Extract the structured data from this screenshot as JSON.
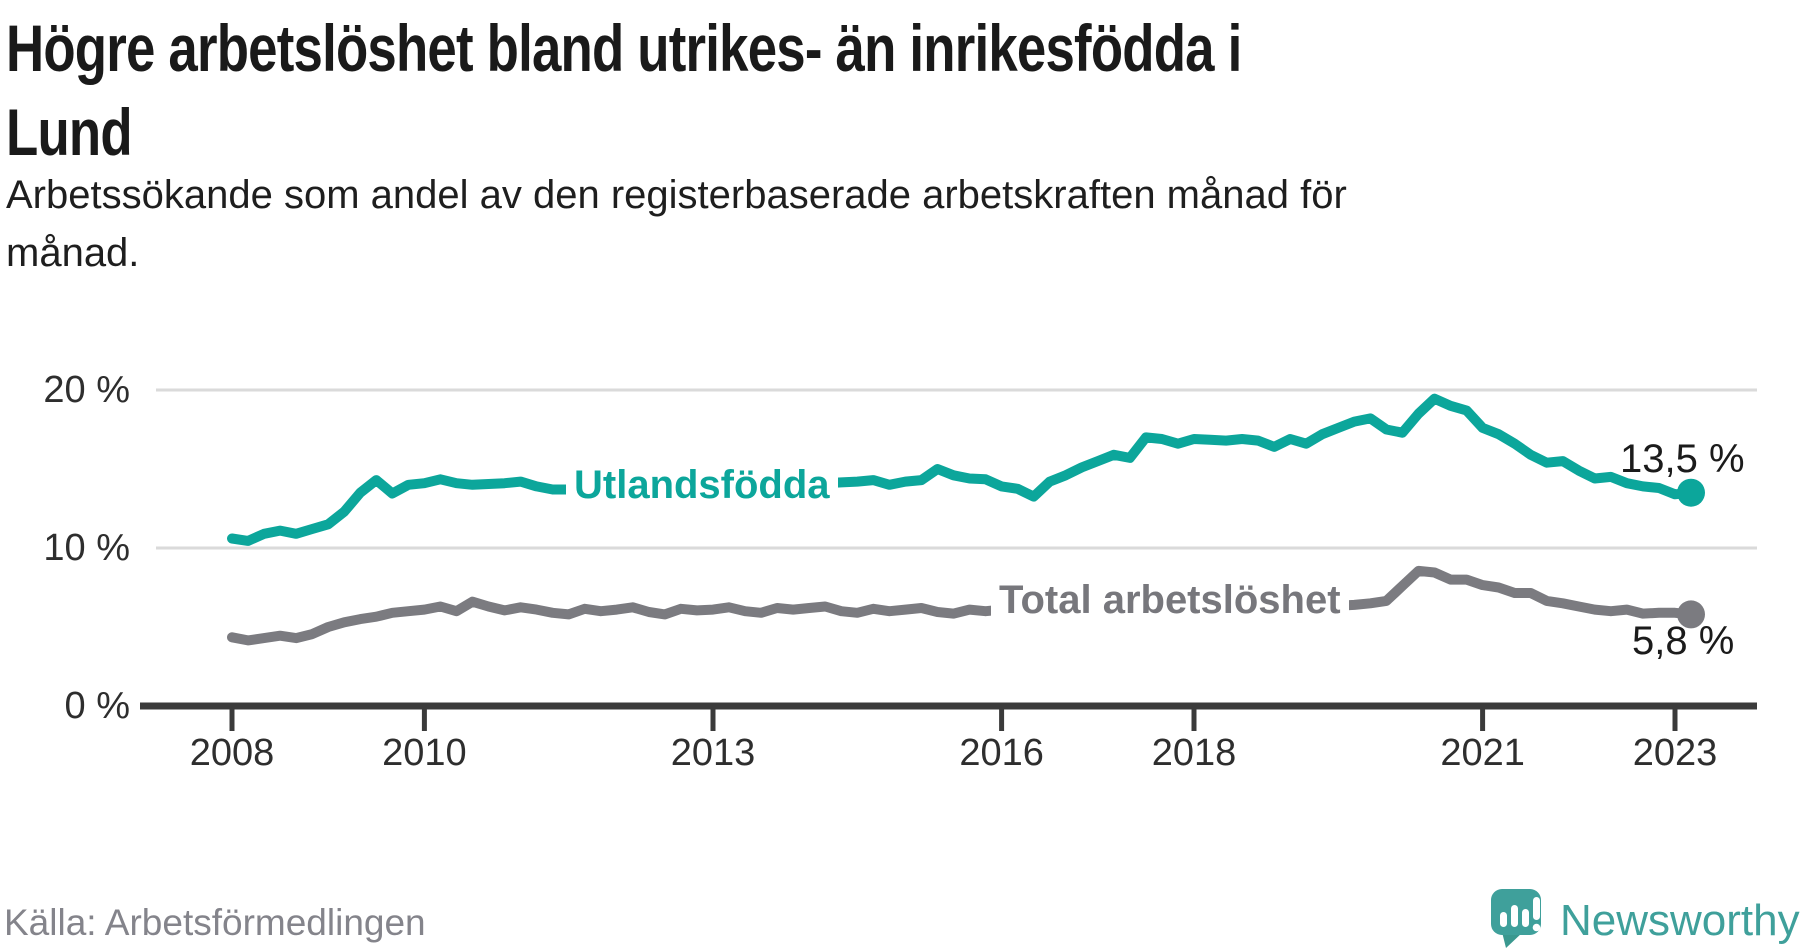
{
  "chart_data": {
    "type": "line",
    "title": "Högre arbetslöshet bland utrikes- än inrikesfödda i Lund",
    "title_lines": [
      "Högre arbetslöshet bland utrikes- än inrikesfödda i",
      "Lund"
    ],
    "subtitle": "Arbetssökande som andel av den registerbaserade arbetskraften månad för månad.",
    "subtitle_lines": [
      "Arbetssökande som andel av den registerbaserade arbetskraften månad för",
      "månad."
    ],
    "x_range": [
      2008,
      2023.17
    ],
    "ylim": [
      0,
      21
    ],
    "grid": "horizontal",
    "legend_position": "inline-on-line",
    "x_ticks": [
      {
        "year": 2008,
        "label": "2008"
      },
      {
        "year": 2010,
        "label": "2010"
      },
      {
        "year": 2013,
        "label": "2013"
      },
      {
        "year": 2016,
        "label": "2016"
      },
      {
        "year": 2018,
        "label": "2018"
      },
      {
        "year": 2021,
        "label": "2021"
      },
      {
        "year": 2023,
        "label": "2023"
      }
    ],
    "y_ticks": [
      {
        "value": 0,
        "label": "0 %"
      },
      {
        "value": 10,
        "label": "10 %"
      },
      {
        "value": 20,
        "label": "20 %"
      }
    ],
    "series": [
      {
        "name": "Utlandsfödda",
        "color": "#0CA69B",
        "value_label": "13,5 %",
        "last_value": 13.5,
        "x_start": 2008.0,
        "x_step_years": 0.166667,
        "end_dot": true,
        "values": [
          10.6,
          10.45,
          10.9,
          11.1,
          10.9,
          11.2,
          11.5,
          12.3,
          13.5,
          14.3,
          13.45,
          14.0,
          14.1,
          14.35,
          14.1,
          14.0,
          14.05,
          14.1,
          14.2,
          13.9,
          13.7,
          13.7,
          13.8,
          13.75,
          13.7,
          13.8,
          13.75,
          13.8,
          13.9,
          13.85,
          13.9,
          14.0,
          13.9,
          13.95,
          14.0,
          14.0,
          14.05,
          14.1,
          14.15,
          14.2,
          14.3,
          14.0,
          14.2,
          14.3,
          15.0,
          14.6,
          14.4,
          14.35,
          13.9,
          13.75,
          13.25,
          14.2,
          14.6,
          15.1,
          15.5,
          15.9,
          15.7,
          17.0,
          16.9,
          16.6,
          16.9,
          16.85,
          16.8,
          16.9,
          16.8,
          16.4,
          16.9,
          16.6,
          17.2,
          17.6,
          18.0,
          18.2,
          17.5,
          17.3,
          18.5,
          19.45,
          19.0,
          18.7,
          17.6,
          17.2,
          16.6,
          15.9,
          15.4,
          15.5,
          14.9,
          14.4,
          14.5,
          14.1,
          13.9,
          13.8,
          13.4,
          13.5
        ]
      },
      {
        "name": "Total arbetslöshet",
        "color": "#7B7B80",
        "value_label": "5,8 %",
        "last_value": 5.8,
        "x_start": 2008.0,
        "x_step_years": 0.166667,
        "end_dot": true,
        "values": [
          4.35,
          4.15,
          4.3,
          4.45,
          4.3,
          4.55,
          5.0,
          5.3,
          5.5,
          5.65,
          5.9,
          6.0,
          6.1,
          6.3,
          6.0,
          6.6,
          6.3,
          6.05,
          6.25,
          6.1,
          5.9,
          5.8,
          6.15,
          6.0,
          6.1,
          6.25,
          5.95,
          5.8,
          6.15,
          6.05,
          6.1,
          6.25,
          6.0,
          5.9,
          6.2,
          6.1,
          6.2,
          6.3,
          6.0,
          5.9,
          6.15,
          6.0,
          6.1,
          6.2,
          5.95,
          5.85,
          6.1,
          6.0,
          6.1,
          6.05,
          6.0,
          6.05,
          6.1,
          6.1,
          6.1,
          6.15,
          6.1,
          6.15,
          6.2,
          6.2,
          6.2,
          6.25,
          6.2,
          6.25,
          6.3,
          6.3,
          6.3,
          6.35,
          6.3,
          6.35,
          6.4,
          6.5,
          6.65,
          7.6,
          8.55,
          8.45,
          8.0,
          8.0,
          7.65,
          7.5,
          7.15,
          7.15,
          6.65,
          6.5,
          6.3,
          6.1,
          6.0,
          6.1,
          5.85,
          5.9,
          5.9,
          5.8
        ]
      }
    ]
  },
  "colors": {
    "grid": "#DADADA",
    "axis": "#3B3B3B",
    "tick_text": "#2e2e2e",
    "value_text": "#1b1b1b",
    "teal": "#0CA69B",
    "gray": "#7B7B80",
    "brand_teal": "#3FA09B"
  },
  "footer": {
    "source": "Källa: Arbetsförmedlingen",
    "brand": "Newsworthy"
  }
}
